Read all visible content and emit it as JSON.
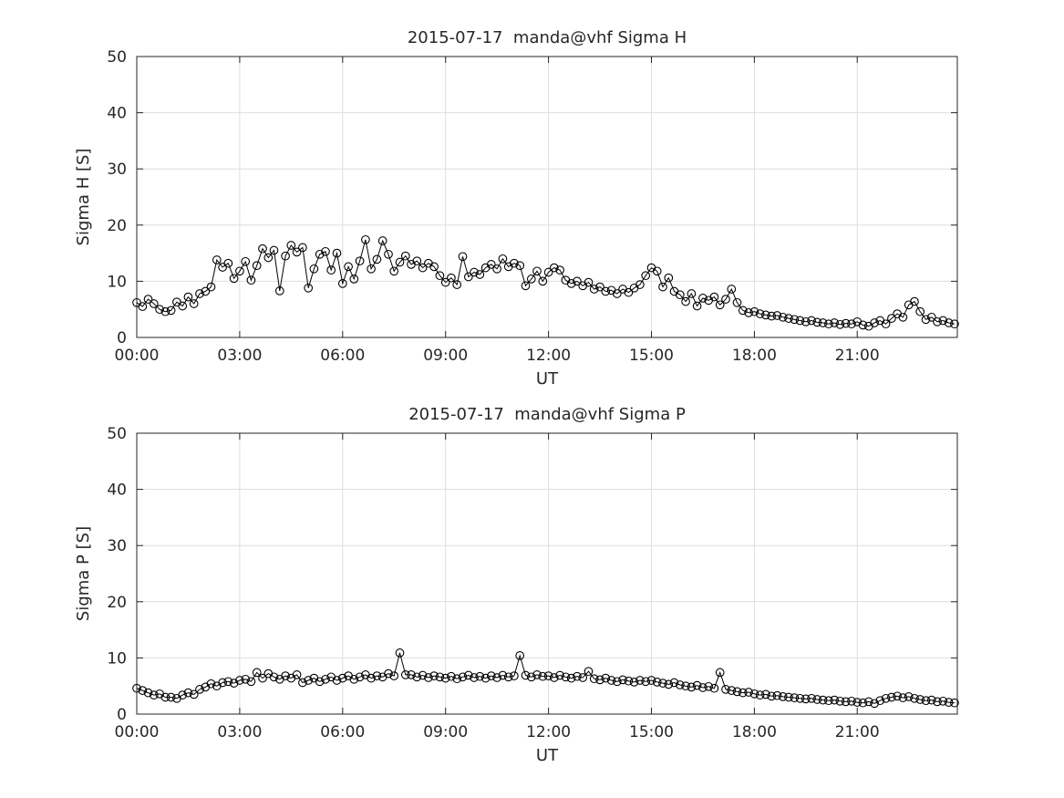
{
  "figure": {
    "background": "#ffffff",
    "text_color": "#262626",
    "axes_color": "#262626",
    "grid_color": "#dedede",
    "marker_color": "#000000"
  },
  "chart_data": [
    {
      "type": "line",
      "title": "2015-07-17  manda@vhf Sigma H",
      "xlabel": "UT",
      "ylabel": "Sigma H [S]",
      "ylim": [
        0,
        50
      ],
      "yticks": [
        0,
        10,
        20,
        30,
        40,
        50
      ],
      "xlim_hours": [
        0,
        23.9167
      ],
      "xtick_hours": [
        0,
        3,
        6,
        9,
        12,
        15,
        18,
        21
      ],
      "xtick_labels": [
        "00:00",
        "03:00",
        "06:00",
        "09:00",
        "12:00",
        "15:00",
        "18:00",
        "21:00"
      ],
      "marker": "open-circle",
      "line_style": "solid",
      "grid": true,
      "legend": "none",
      "start_hour": 0,
      "sample_interval_minutes": 10,
      "values": [
        6.2,
        5.5,
        6.8,
        6.0,
        5.0,
        4.6,
        4.8,
        6.3,
        5.6,
        7.2,
        6.0,
        7.8,
        8.2,
        9.0,
        13.8,
        12.5,
        13.2,
        10.5,
        11.8,
        13.5,
        10.2,
        12.8,
        15.8,
        14.2,
        15.5,
        8.3,
        14.5,
        16.4,
        15.2,
        16.0,
        8.8,
        12.2,
        14.8,
        15.3,
        12.0,
        15.0,
        9.6,
        12.6,
        10.4,
        13.6,
        17.4,
        12.2,
        13.9,
        17.2,
        14.8,
        11.8,
        13.4,
        14.5,
        13.0,
        13.6,
        12.4,
        13.2,
        12.6,
        11.0,
        9.8,
        10.6,
        9.4,
        14.4,
        10.8,
        11.6,
        11.2,
        12.4,
        13.0,
        12.2,
        14.0,
        12.6,
        13.2,
        12.8,
        9.2,
        10.4,
        11.8,
        10.0,
        11.6,
        12.4,
        12.0,
        10.2,
        9.6,
        10.0,
        9.2,
        9.8,
        8.6,
        9.0,
        8.2,
        8.4,
        7.8,
        8.6,
        8.0,
        8.8,
        9.4,
        11.0,
        12.4,
        11.8,
        9.0,
        10.6,
        8.2,
        7.6,
        6.4,
        7.8,
        5.6,
        7.0,
        6.6,
        7.2,
        5.8,
        6.8,
        8.6,
        6.2,
        4.8,
        4.4,
        4.6,
        4.2,
        4.0,
        3.8,
        3.9,
        3.6,
        3.4,
        3.2,
        3.0,
        2.8,
        3.0,
        2.7,
        2.6,
        2.4,
        2.6,
        2.3,
        2.5,
        2.4,
        2.8,
        2.2,
        2.0,
        2.6,
        3.0,
        2.4,
        3.4,
        4.2,
        3.6,
        5.8,
        6.4,
        4.6,
        3.2,
        3.6,
        2.8,
        3.0,
        2.6,
        2.4
      ]
    },
    {
      "type": "line",
      "title": "2015-07-17  manda@vhf Sigma P",
      "xlabel": "UT",
      "ylabel": "Sigma P [S]",
      "ylim": [
        0,
        50
      ],
      "yticks": [
        0,
        10,
        20,
        30,
        40,
        50
      ],
      "xlim_hours": [
        0,
        23.9167
      ],
      "xtick_hours": [
        0,
        3,
        6,
        9,
        12,
        15,
        18,
        21
      ],
      "xtick_labels": [
        "00:00",
        "03:00",
        "06:00",
        "09:00",
        "12:00",
        "15:00",
        "18:00",
        "21:00"
      ],
      "marker": "open-circle",
      "line_style": "solid",
      "grid": true,
      "legend": "none",
      "start_hour": 0,
      "sample_interval_minutes": 10,
      "values": [
        4.6,
        4.2,
        3.8,
        3.4,
        3.6,
        3.0,
        3.0,
        2.8,
        3.4,
        3.8,
        3.5,
        4.4,
        4.8,
        5.4,
        5.0,
        5.6,
        5.8,
        5.5,
        6.0,
        6.2,
        5.8,
        7.4,
        6.4,
        7.2,
        6.6,
        6.2,
        6.8,
        6.4,
        7.0,
        5.6,
        6.0,
        6.4,
        5.8,
        6.2,
        6.6,
        6.0,
        6.4,
        6.8,
        6.2,
        6.6,
        7.0,
        6.4,
        6.8,
        6.6,
        7.2,
        6.8,
        10.9,
        7.0,
        7.0,
        6.6,
        6.9,
        6.5,
        6.8,
        6.6,
        6.4,
        6.7,
        6.3,
        6.6,
        6.9,
        6.5,
        6.7,
        6.4,
        6.8,
        6.5,
        6.9,
        6.6,
        6.8,
        10.4,
        6.9,
        6.6,
        7.0,
        6.7,
        6.8,
        6.5,
        6.9,
        6.6,
        6.4,
        6.7,
        6.5,
        7.6,
        6.3,
        6.1,
        6.4,
        6.0,
        5.8,
        6.1,
        5.9,
        5.7,
        6.0,
        5.8,
        6.0,
        5.7,
        5.5,
        5.3,
        5.6,
        5.2,
        5.0,
        4.8,
        5.1,
        4.7,
        4.9,
        4.6,
        7.4,
        4.4,
        4.2,
        4.0,
        3.8,
        3.9,
        3.6,
        3.4,
        3.5,
        3.2,
        3.3,
        3.1,
        3.0,
        2.9,
        2.8,
        2.7,
        2.8,
        2.6,
        2.5,
        2.4,
        2.5,
        2.3,
        2.2,
        2.3,
        2.1,
        2.0,
        2.2,
        1.9,
        2.4,
        2.8,
        3.0,
        3.2,
        2.9,
        3.1,
        2.8,
        2.6,
        2.4,
        2.5,
        2.2,
        2.3,
        2.1,
        2.0
      ]
    }
  ]
}
